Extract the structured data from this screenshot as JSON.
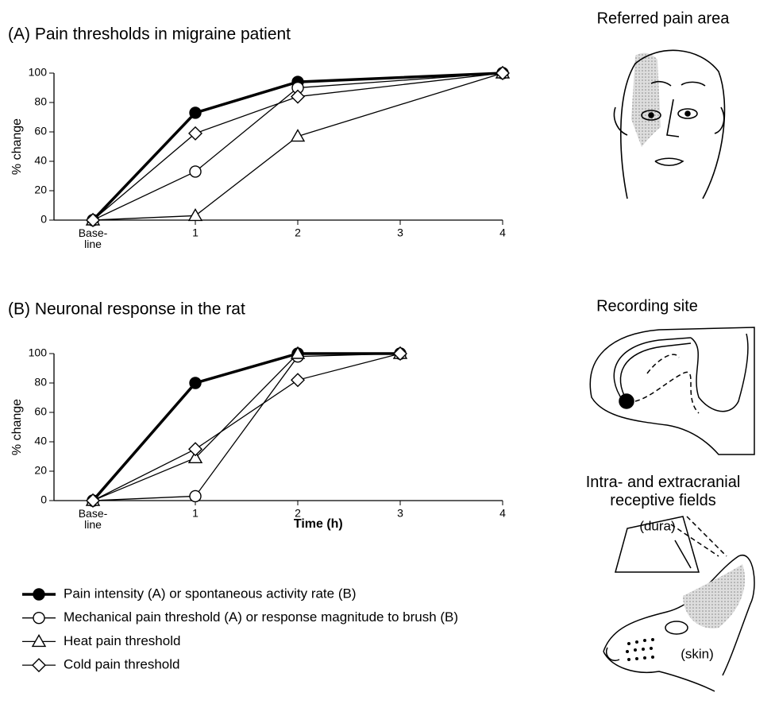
{
  "chart_data": [
    {
      "type": "line",
      "title": "(A)  Pain thresholds in migraine patient",
      "ylabel": "% change",
      "xlim": [
        -0.38,
        4
      ],
      "ylim": [
        0,
        100
      ],
      "xticks": [
        {
          "value": 0,
          "label": "Base-\nline"
        },
        1,
        2,
        3,
        4
      ],
      "yticks": [
        0,
        20,
        40,
        60,
        80,
        100
      ],
      "series": [
        {
          "color": "#000000",
          "marker": "filled-circle",
          "line_width": 3.5,
          "x": [
            0,
            1,
            2,
            4
          ],
          "values": [
            0,
            73,
            94,
            100
          ]
        },
        {
          "color": "#000000",
          "marker": "circle",
          "line_width": 1.3,
          "x": [
            0,
            1,
            2,
            4
          ],
          "values": [
            0,
            33,
            90,
            100
          ]
        },
        {
          "color": "#000000",
          "marker": "triangle",
          "line_width": 1.3,
          "x": [
            0,
            1,
            2,
            4
          ],
          "values": [
            0,
            3,
            57,
            100
          ]
        },
        {
          "color": "#000000",
          "marker": "diamond",
          "line_width": 1.3,
          "x": [
            0,
            1,
            2,
            4
          ],
          "values": [
            0,
            59,
            84,
            100
          ]
        }
      ]
    },
    {
      "type": "line",
      "title": "(B)  Neuronal response in the rat",
      "ylabel": "% change",
      "xlabel": "Time (h)",
      "xlim": [
        -0.38,
        4
      ],
      "ylim": [
        0,
        100
      ],
      "xticks": [
        {
          "value": 0,
          "label": "Base-\nline"
        },
        1,
        2,
        3,
        4
      ],
      "yticks": [
        0,
        20,
        40,
        60,
        80,
        100
      ],
      "legend": "bottom-left",
      "series": [
        {
          "name": "Pain intensity (A) or spontaneous activity rate (B)",
          "color": "#000000",
          "marker": "filled-circle",
          "line_width": 3.5,
          "x": [
            0,
            1,
            2,
            3
          ],
          "values": [
            0,
            80,
            100,
            100
          ]
        },
        {
          "name": "Mechanical pain threshold (A) or response magnitude to brush (B)",
          "color": "#000000",
          "marker": "circle",
          "line_width": 1.3,
          "x": [
            0,
            1,
            2,
            3
          ],
          "values": [
            0,
            3,
            98,
            100
          ]
        },
        {
          "name": "Heat pain threshold",
          "color": "#000000",
          "marker": "triangle",
          "line_width": 1.3,
          "x": [
            0,
            1,
            2,
            3
          ],
          "values": [
            0,
            29,
            100,
            100
          ]
        },
        {
          "name": "Cold pain threshold",
          "color": "#000000",
          "marker": "diamond",
          "line_width": 1.3,
          "x": [
            0,
            1,
            2,
            3
          ],
          "values": [
            0,
            35,
            82,
            100
          ]
        }
      ]
    }
  ],
  "illustrations": {
    "face": "Referred pain area",
    "brain": "Recording site",
    "rat": "Intra- and extracranial\nreceptive fields",
    "dura": "(dura)",
    "skin": "(skin)"
  }
}
